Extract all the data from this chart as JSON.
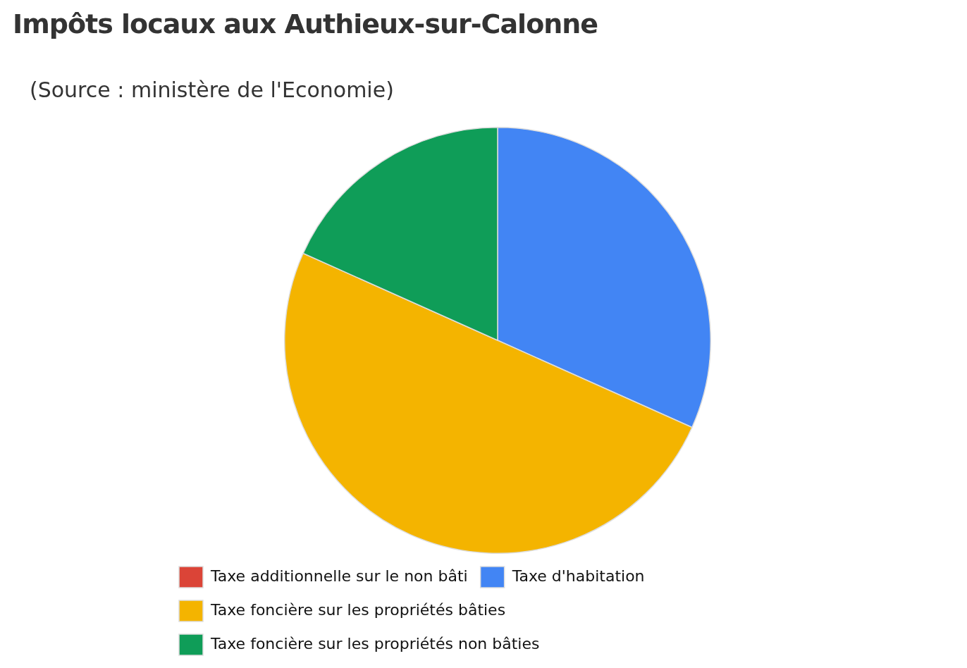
{
  "chart_data": {
    "type": "pie",
    "title": "Impôts locaux aux Authieux-sur-Calonne",
    "annotations": [
      "(Source : ministère de l'Economie)"
    ],
    "categories": [
      "Taxe additionnelle sur le non bâti",
      "Taxe d'habitation",
      "Taxe foncière sur les propriétés bâties",
      "Taxe foncière sur les propriétés non bâties"
    ],
    "values": [
      0,
      31.7,
      50.0,
      18.3
    ],
    "colors": [
      "#db4437",
      "#4285f4",
      "#f4b400",
      "#0f9d58"
    ],
    "legend": "bottom"
  }
}
